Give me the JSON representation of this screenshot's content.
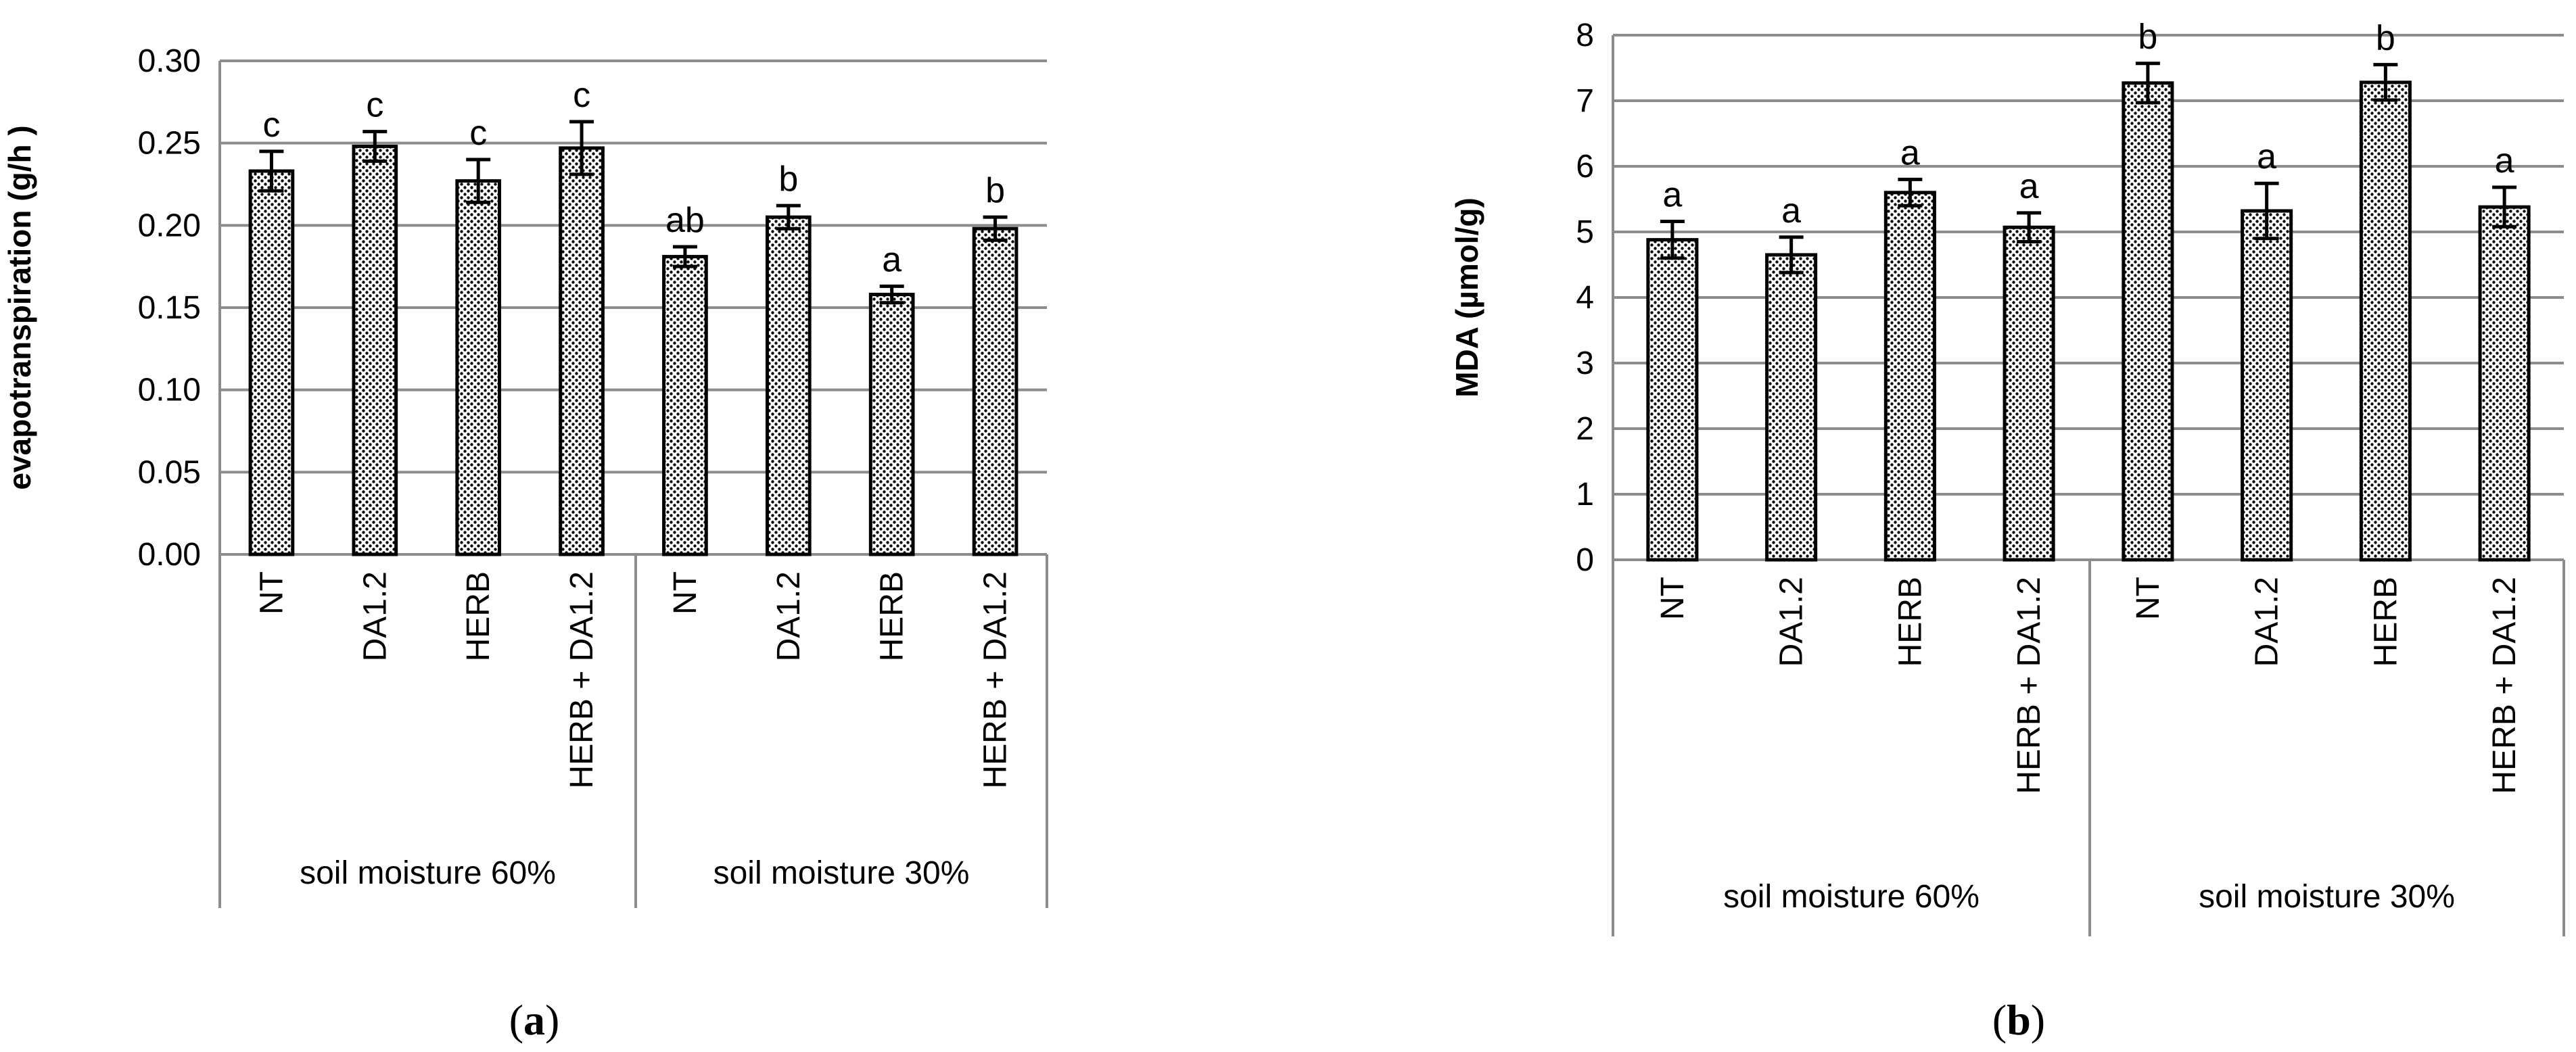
{
  "chart_data": [
    {
      "panel_label": "a",
      "type": "bar",
      "ylabel": "evapotranspiration (g/h )",
      "ylim": [
        0,
        0.3
      ],
      "yticks": [
        "0.00",
        "0.05",
        "0.10",
        "0.15",
        "0.20",
        "0.25",
        "0.30"
      ],
      "grid": true,
      "bar_fill": "dotted",
      "categories": [
        "NT",
        "DA1.2",
        "HERB",
        "HERB + DA1.2",
        "NT",
        "DA1.2",
        "HERB",
        "HERB + DA1.2"
      ],
      "groups": [
        "soil  moisture 60%",
        "soil moisture 30%"
      ],
      "values": [
        0.233,
        0.248,
        0.227,
        0.247,
        0.181,
        0.205,
        0.158,
        0.198
      ],
      "errors": [
        0.012,
        0.009,
        0.013,
        0.016,
        0.006,
        0.007,
        0.005,
        0.007
      ],
      "significance": [
        "c",
        "c",
        "c",
        "c",
        "ab",
        "b",
        "a",
        "b"
      ]
    },
    {
      "panel_label": "b",
      "type": "bar",
      "ylabel": "MDA (µmol/g)",
      "ylim": [
        0,
        8
      ],
      "yticks": [
        "0",
        "1",
        "2",
        "3",
        "4",
        "5",
        "6",
        "7",
        "8"
      ],
      "grid": true,
      "bar_fill": "dotted",
      "categories": [
        "NT",
        "DA1.2",
        "HERB",
        "HERB + DA1.2",
        "NT",
        "DA1.2",
        "HERB",
        "HERB + DA1.2"
      ],
      "groups": [
        "soil  moisture 60%",
        "soil moisture 30%"
      ],
      "values": [
        4.88,
        4.65,
        5.6,
        5.07,
        7.27,
        5.32,
        7.28,
        5.38
      ],
      "errors": [
        0.28,
        0.27,
        0.2,
        0.22,
        0.3,
        0.42,
        0.27,
        0.3
      ],
      "significance": [
        "a",
        "a",
        "a",
        "a",
        "b",
        "a",
        "b",
        "a"
      ]
    }
  ]
}
